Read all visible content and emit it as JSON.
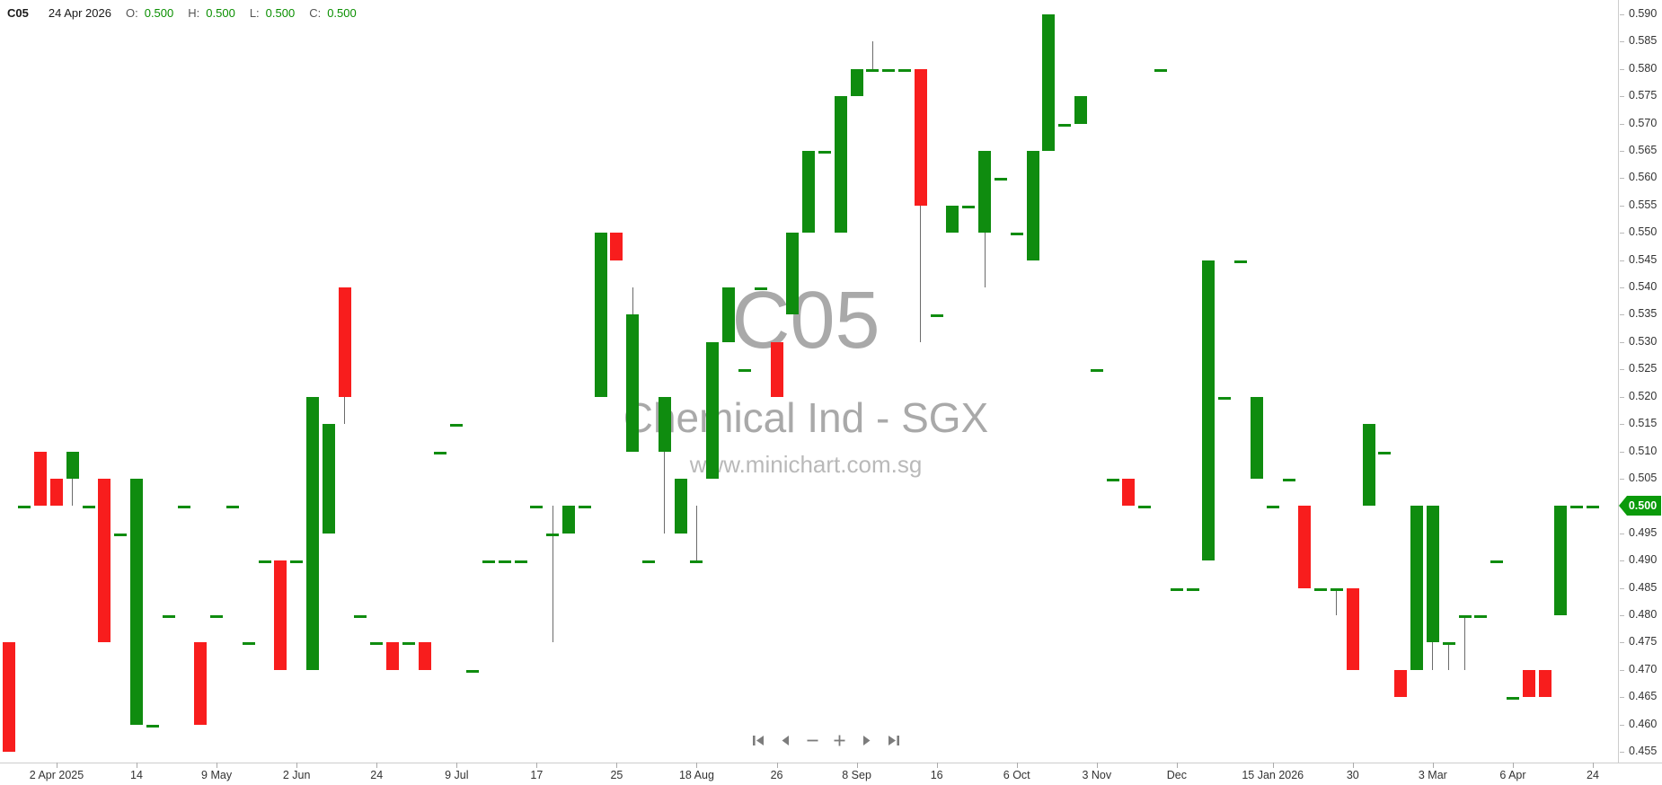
{
  "header": {
    "symbol": "C05",
    "date": "24 Apr 2026",
    "o_label": "O:",
    "o_value": "0.500",
    "h_label": "H:",
    "h_value": "0.500",
    "l_label": "L:",
    "l_value": "0.500",
    "c_label": "C:",
    "c_value": "0.500"
  },
  "watermark": {
    "symbol": "C05",
    "name": "Chemical Ind - SGX",
    "url": "www.minichart.com.sg"
  },
  "price_tag": "0.500",
  "colors": {
    "up": "#0f8c0f",
    "down": "#f81d1d",
    "wick": "#6b6b6b",
    "tag": "#0a9a0a",
    "axis": "#cccccc",
    "label": "#333333",
    "value_green": "#0a8f00",
    "watermark": "#a9a9a9",
    "nav": "#7c7c7c"
  },
  "nav": {
    "items": [
      "skip-to-start",
      "step-back",
      "zoom-out",
      "zoom-in",
      "step-forward",
      "skip-to-end"
    ]
  },
  "y_axis": {
    "labels": [
      "0.590",
      "0.585",
      "0.580",
      "0.575",
      "0.570",
      "0.565",
      "0.560",
      "0.555",
      "0.550",
      "0.545",
      "0.540",
      "0.535",
      "0.530",
      "0.525",
      "0.520",
      "0.515",
      "0.510",
      "0.505",
      "0.500",
      "0.495",
      "0.490",
      "0.485",
      "0.480",
      "0.475",
      "0.470",
      "0.465",
      "0.460",
      "0.455"
    ]
  },
  "x_axis": {
    "ticks": [
      {
        "label": "2 Apr 2025",
        "index": 3
      },
      {
        "label": "14",
        "index": 8
      },
      {
        "label": "9 May",
        "index": 13
      },
      {
        "label": "2 Jun",
        "index": 18
      },
      {
        "label": "24",
        "index": 23
      },
      {
        "label": "9 Jul",
        "index": 28
      },
      {
        "label": "17",
        "index": 33
      },
      {
        "label": "25",
        "index": 38
      },
      {
        "label": "18 Aug",
        "index": 43
      },
      {
        "label": "26",
        "index": 48
      },
      {
        "label": "8 Sep",
        "index": 53
      },
      {
        "label": "16",
        "index": 58
      },
      {
        "label": "6 Oct",
        "index": 63
      },
      {
        "label": "3 Nov",
        "index": 68
      },
      {
        "label": "Dec",
        "index": 73
      },
      {
        "label": "15 Jan 2026",
        "index": 79
      },
      {
        "label": "30",
        "index": 84
      },
      {
        "label": "3 Mar",
        "index": 89
      },
      {
        "label": "6 Apr",
        "index": 94
      },
      {
        "label": "24",
        "index": 99
      }
    ]
  },
  "chart_data": {
    "type": "candlestick",
    "title": "C05 Chemical Ind - SGX",
    "price_min": 0.455,
    "price_max": 0.59,
    "price_step": 0.005,
    "legend_position": "none",
    "grid": false,
    "last_close": 0.5,
    "candles": [
      [
        0.475,
        0.475,
        0.455,
        0.455
      ],
      [
        0.5,
        0.5,
        0.5,
        0.5
      ],
      [
        0.51,
        0.51,
        0.5,
        0.5
      ],
      [
        0.505,
        0.505,
        0.5,
        0.5
      ],
      [
        0.505,
        0.51,
        0.5,
        0.51
      ],
      [
        0.5,
        0.5,
        0.5,
        0.5
      ],
      [
        0.505,
        0.505,
        0.475,
        0.475
      ],
      [
        0.495,
        0.495,
        0.495,
        0.495
      ],
      [
        0.46,
        0.505,
        0.46,
        0.505
      ],
      [
        0.46,
        0.46,
        0.46,
        0.46
      ],
      [
        0.48,
        0.48,
        0.48,
        0.48
      ],
      [
        0.5,
        0.5,
        0.5,
        0.5
      ],
      [
        0.475,
        0.475,
        0.46,
        0.46
      ],
      [
        0.48,
        0.48,
        0.48,
        0.48
      ],
      [
        0.5,
        0.5,
        0.5,
        0.5
      ],
      [
        0.475,
        0.475,
        0.475,
        0.475
      ],
      [
        0.49,
        0.49,
        0.49,
        0.49
      ],
      [
        0.49,
        0.49,
        0.47,
        0.47
      ],
      [
        0.49,
        0.49,
        0.49,
        0.49
      ],
      [
        0.47,
        0.52,
        0.47,
        0.52
      ],
      [
        0.495,
        0.515,
        0.495,
        0.515
      ],
      [
        0.54,
        0.54,
        0.515,
        0.52
      ],
      [
        0.48,
        0.48,
        0.48,
        0.48
      ],
      [
        0.475,
        0.475,
        0.475,
        0.475
      ],
      [
        0.475,
        0.475,
        0.47,
        0.47
      ],
      [
        0.475,
        0.475,
        0.475,
        0.475
      ],
      [
        0.475,
        0.475,
        0.47,
        0.47
      ],
      [
        0.51,
        0.51,
        0.51,
        0.51
      ],
      [
        0.515,
        0.515,
        0.515,
        0.515
      ],
      [
        0.47,
        0.47,
        0.47,
        0.47
      ],
      [
        0.49,
        0.49,
        0.49,
        0.49
      ],
      [
        0.49,
        0.49,
        0.49,
        0.49
      ],
      [
        0.49,
        0.49,
        0.49,
        0.49
      ],
      [
        0.5,
        0.5,
        0.5,
        0.5
      ],
      [
        0.495,
        0.5,
        0.475,
        0.495
      ],
      [
        0.495,
        0.5,
        0.495,
        0.5
      ],
      [
        0.5,
        0.5,
        0.5,
        0.5
      ],
      [
        0.52,
        0.55,
        0.52,
        0.55
      ],
      [
        0.55,
        0.55,
        0.545,
        0.545
      ],
      [
        0.51,
        0.54,
        0.51,
        0.535
      ],
      [
        0.49,
        0.49,
        0.49,
        0.49
      ],
      [
        0.51,
        0.52,
        0.495,
        0.52
      ],
      [
        0.495,
        0.505,
        0.495,
        0.505
      ],
      [
        0.49,
        0.5,
        0.49,
        0.49
      ],
      [
        0.505,
        0.53,
        0.505,
        0.53
      ],
      [
        0.53,
        0.54,
        0.53,
        0.54
      ],
      [
        0.525,
        0.525,
        0.525,
        0.525
      ],
      [
        0.54,
        0.54,
        0.54,
        0.54
      ],
      [
        0.53,
        0.53,
        0.52,
        0.52
      ],
      [
        0.535,
        0.55,
        0.535,
        0.55
      ],
      [
        0.55,
        0.565,
        0.55,
        0.565
      ],
      [
        0.565,
        0.565,
        0.565,
        0.565
      ],
      [
        0.55,
        0.575,
        0.55,
        0.575
      ],
      [
        0.575,
        0.58,
        0.575,
        0.58
      ],
      [
        0.58,
        0.585,
        0.58,
        0.58
      ],
      [
        0.58,
        0.58,
        0.58,
        0.58
      ],
      [
        0.58,
        0.58,
        0.58,
        0.58
      ],
      [
        0.58,
        0.58,
        0.53,
        0.555
      ],
      [
        0.535,
        0.535,
        0.535,
        0.535
      ],
      [
        0.55,
        0.555,
        0.55,
        0.555
      ],
      [
        0.555,
        0.555,
        0.555,
        0.555
      ],
      [
        0.55,
        0.565,
        0.54,
        0.565
      ],
      [
        0.56,
        0.56,
        0.56,
        0.56
      ],
      [
        0.55,
        0.55,
        0.55,
        0.55
      ],
      [
        0.545,
        0.565,
        0.545,
        0.565
      ],
      [
        0.565,
        0.59,
        0.565,
        0.59
      ],
      [
        0.57,
        0.57,
        0.57,
        0.57
      ],
      [
        0.57,
        0.575,
        0.57,
        0.575
      ],
      [
        0.525,
        0.525,
        0.525,
        0.525
      ],
      [
        0.505,
        0.505,
        0.505,
        0.505
      ],
      [
        0.505,
        0.505,
        0.5,
        0.5
      ],
      [
        0.5,
        0.5,
        0.5,
        0.5
      ],
      [
        0.58,
        0.58,
        0.58,
        0.58
      ],
      [
        0.485,
        0.485,
        0.485,
        0.485
      ],
      [
        0.485,
        0.485,
        0.485,
        0.485
      ],
      [
        0.49,
        0.545,
        0.49,
        0.545
      ],
      [
        0.52,
        0.52,
        0.52,
        0.52
      ],
      [
        0.545,
        0.545,
        0.545,
        0.545
      ],
      [
        0.505,
        0.52,
        0.505,
        0.52
      ],
      [
        0.5,
        0.5,
        0.5,
        0.5
      ],
      [
        0.505,
        0.505,
        0.505,
        0.505
      ],
      [
        0.5,
        0.5,
        0.485,
        0.485
      ],
      [
        0.485,
        0.485,
        0.485,
        0.485
      ],
      [
        0.485,
        0.485,
        0.48,
        0.485
      ],
      [
        0.485,
        0.485,
        0.47,
        0.47
      ],
      [
        0.5,
        0.515,
        0.5,
        0.515
      ],
      [
        0.51,
        0.51,
        0.51,
        0.51
      ],
      [
        0.47,
        0.47,
        0.465,
        0.465
      ],
      [
        0.47,
        0.5,
        0.47,
        0.5
      ],
      [
        0.475,
        0.5,
        0.47,
        0.5
      ],
      [
        0.475,
        0.475,
        0.47,
        0.475
      ],
      [
        0.48,
        0.48,
        0.47,
        0.48
      ],
      [
        0.48,
        0.48,
        0.48,
        0.48
      ],
      [
        0.49,
        0.49,
        0.49,
        0.49
      ],
      [
        0.465,
        0.465,
        0.465,
        0.465
      ],
      [
        0.47,
        0.47,
        0.465,
        0.465
      ],
      [
        0.47,
        0.47,
        0.465,
        0.465
      ],
      [
        0.48,
        0.5,
        0.48,
        0.5
      ],
      [
        0.5,
        0.5,
        0.5,
        0.5
      ],
      [
        0.5,
        0.5,
        0.5,
        0.5
      ]
    ]
  }
}
